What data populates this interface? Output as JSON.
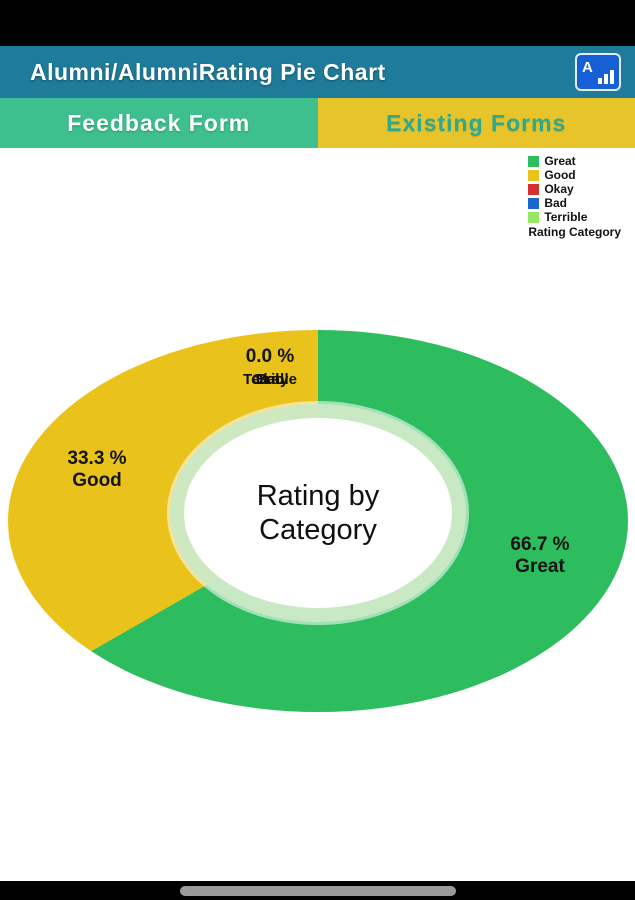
{
  "header": {
    "title": "Alumni/AlumniRating Pie Chart",
    "icon_glyph": "A"
  },
  "tabs": [
    {
      "label": "Feedback Form"
    },
    {
      "label": "Existing Forms"
    }
  ],
  "colors": {
    "appbar": "#1e7b99",
    "tab_feedback_bg": "#3ec08e",
    "tab_existing_bg": "#e7c52a",
    "tab_existing_text": "#2fa98d",
    "app_icon_bg": "#1560d4",
    "slice_great": "#2dbd5f",
    "slice_good": "#e9c21b",
    "slice_okay": "#d62f2f",
    "slice_bad": "#1a66cc",
    "slice_terrible": "#97e863"
  },
  "chart_data": {
    "type": "pie",
    "donut": true,
    "title": "Rating by Category",
    "labels": [
      "Great",
      "Good",
      "Okay",
      "Bad",
      "Terrible"
    ],
    "values": [
      66.7,
      33.3,
      0.0,
      0.0,
      0.0
    ],
    "colors": [
      "#2dbd5f",
      "#e9c21b",
      "#d62f2f",
      "#1a66cc",
      "#97e863"
    ],
    "legend_title": "Rating Category",
    "legend_position": "top-right",
    "start_angle_deg": 0,
    "direction": "clockwise",
    "callouts": {
      "great": {
        "pct": "66.7 %",
        "label": "Great"
      },
      "good": {
        "pct": "33.3 %",
        "label": "Good"
      },
      "zero": {
        "pct": "0.0 %",
        "overlap_labels": [
          "Terrible",
          "Okay",
          "Bad"
        ]
      }
    }
  },
  "navbar": {
    "handle": "gesture-handle"
  }
}
